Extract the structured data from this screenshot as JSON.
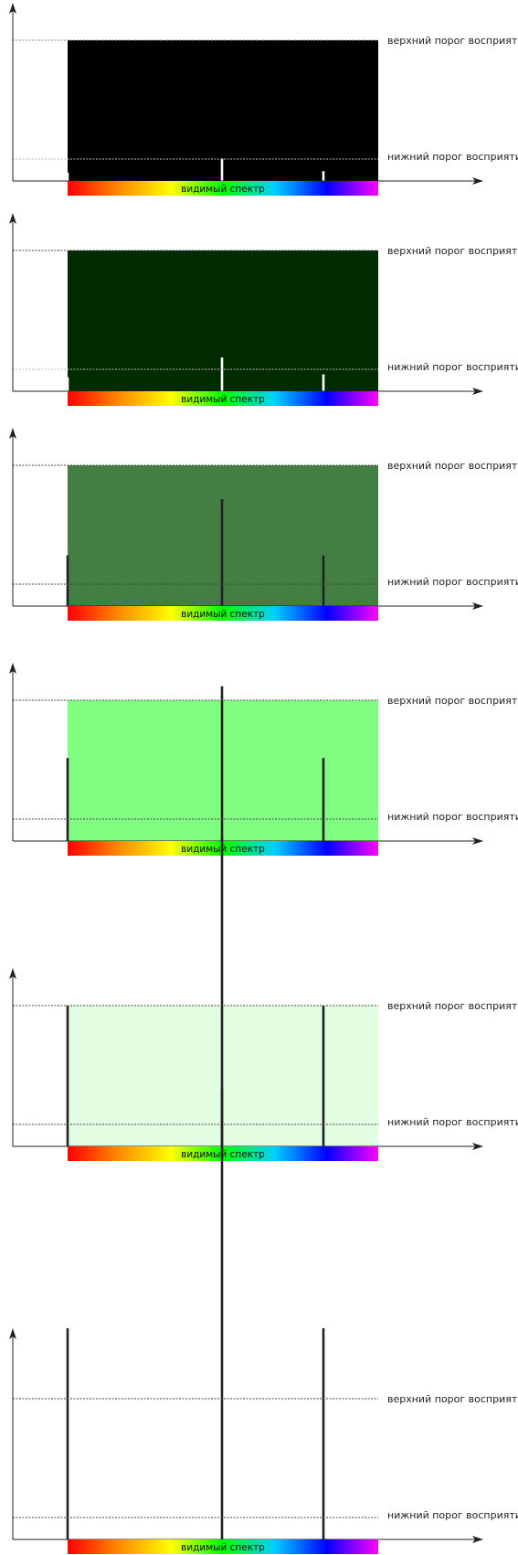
{
  "labels": {
    "upper": "верхний порог восприятия",
    "lower": "нижний порог восприятия",
    "spectrum": "видимый спектр"
  },
  "colors": {
    "axis": "#222222",
    "peak": "#222222",
    "threshold": "#444444",
    "label": "#222222",
    "spectrum_stops": [
      "#ff0000",
      "#ff8c00",
      "#ffff00",
      "#00ff00",
      "#00cfff",
      "#0000ff",
      "#ff00ff"
    ]
  },
  "panels": [
    {
      "fill": "#000000",
      "peak_color": "#ffffff",
      "levels": [
        0.06,
        0.16,
        0.07
      ]
    },
    {
      "fill": "#002a00",
      "peak_color": "#ffffff",
      "levels": [
        0.1,
        0.24,
        0.12
      ]
    },
    {
      "fill": "#437f43",
      "peak_color": "#222222",
      "levels": [
        0.36,
        0.76,
        0.36
      ]
    },
    {
      "fill": "#80fe80",
      "peak_color": "#222222",
      "levels": [
        0.59,
        1.1,
        0.59
      ]
    },
    {
      "fill": "#e2fde2",
      "peak_color": "#222222",
      "levels": [
        1.0,
        2.2,
        1.0
      ]
    },
    {
      "fill": "#ffffff",
      "peak_color": "#222222",
      "levels": [
        1.5,
        3.2,
        1.5
      ]
    }
  ]
}
